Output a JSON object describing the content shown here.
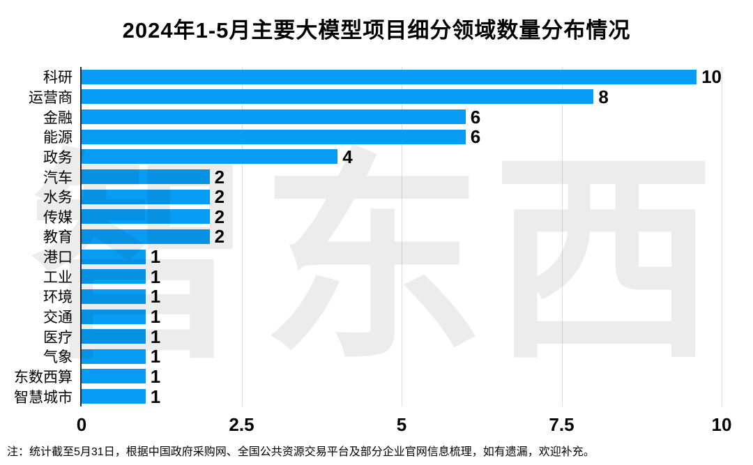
{
  "title": "2024年1-5月主要大模型项目细分领域数量分布情况",
  "footnote": "注：统计截至5月31日，根据中国政府采购网、全国公共资源交易平台及部分企业官网信息梳理，如有遗漏，欢迎补充。",
  "watermark": {
    "text": "智东西"
  },
  "colors": {
    "bar": "#079df5",
    "axis": "#262626",
    "grid": "#dcdcdc",
    "text": "#000000",
    "watermark": "#ececec"
  },
  "chart_data": {
    "type": "bar",
    "orientation": "horizontal",
    "title": "2024年1-5月主要大模型项目细分领域数量分布情况",
    "categories": [
      "科研",
      "运营商",
      "金融",
      "能源",
      "政务",
      "汽车",
      "水务",
      "传媒",
      "教育",
      "港口",
      "工业",
      "环境",
      "交通",
      "医疗",
      "气象",
      "东数西算",
      "智慧城市"
    ],
    "values": [
      10,
      8,
      6,
      6,
      4,
      2,
      2,
      2,
      2,
      1,
      1,
      1,
      1,
      1,
      1,
      1,
      1
    ],
    "xlabel": "",
    "ylabel": "",
    "xlim": [
      0,
      10
    ],
    "xticks": [
      0,
      2.5,
      5,
      7.5,
      10
    ],
    "xtick_labels": [
      "0",
      "2.5",
      "5",
      "7.5",
      "10"
    ],
    "grid": true,
    "legend": false
  }
}
